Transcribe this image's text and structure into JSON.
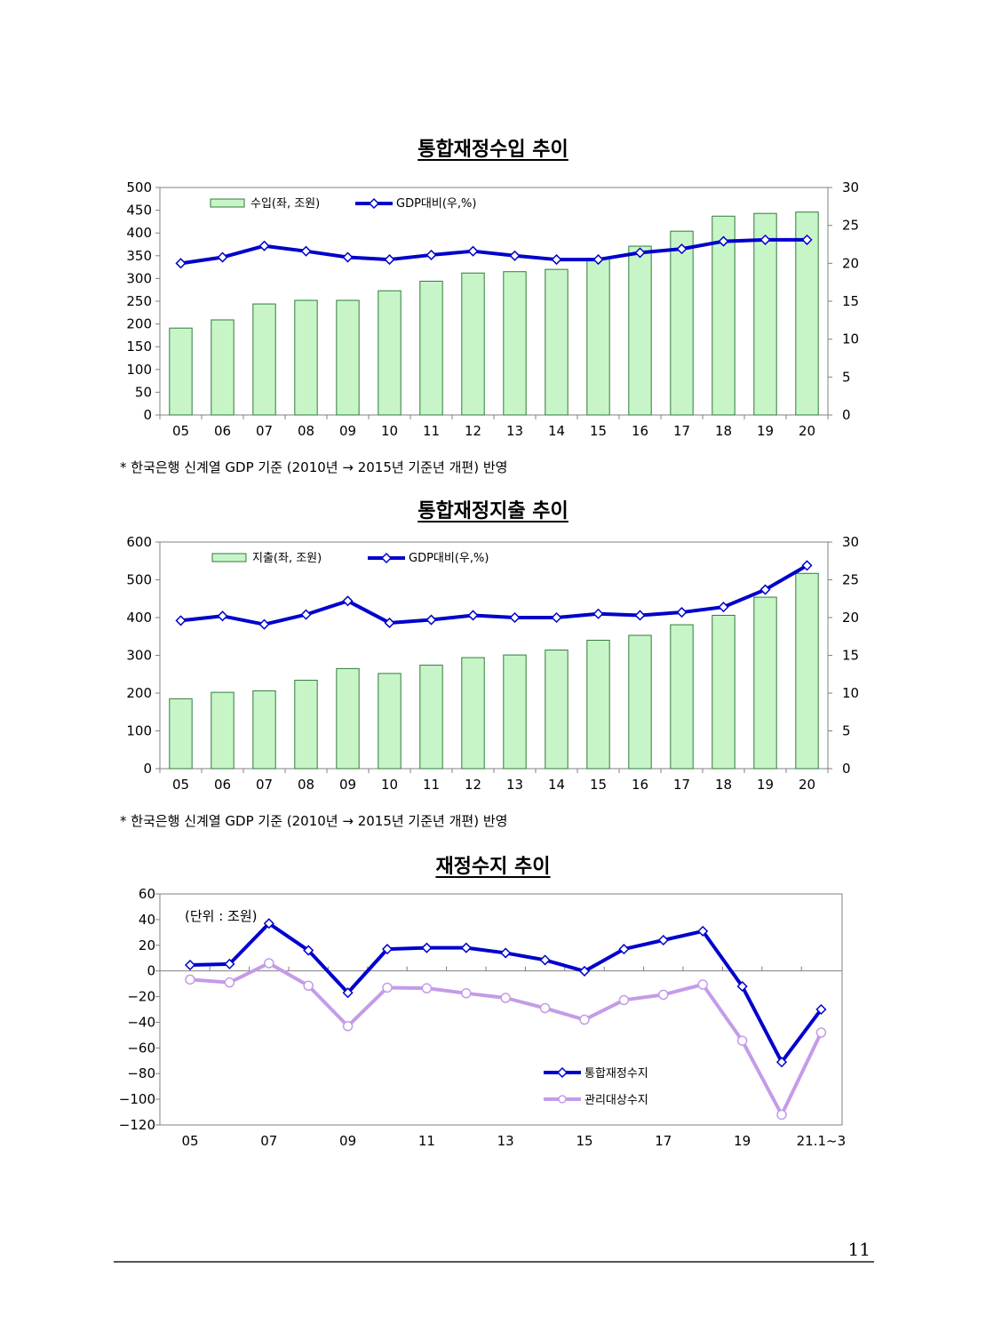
{
  "chart_data": [
    {
      "type": "bar",
      "title": "통합재정수입 추이",
      "categories": [
        "05",
        "06",
        "07",
        "08",
        "09",
        "10",
        "11",
        "12",
        "13",
        "14",
        "15",
        "16",
        "17",
        "18",
        "19",
        "20"
      ],
      "ylim": [
        0,
        500
      ],
      "yticks": [
        "0",
        "50",
        "100",
        "150",
        "200",
        "250",
        "300",
        "350",
        "400",
        "450",
        "500"
      ],
      "y2lim": [
        0,
        30
      ],
      "y2ticks": [
        "0",
        "5",
        "10",
        "15",
        "20",
        "25",
        "30"
      ],
      "legend_position": "top-left",
      "series": [
        {
          "name": "수입(좌, 조원)",
          "type": "bar",
          "axis": "left",
          "values": [
            191,
            209,
            244,
            252,
            252,
            273,
            294,
            312,
            315,
            320,
            344,
            371,
            404,
            437,
            443,
            446
          ]
        },
        {
          "name": "GDP대비(우,%)",
          "type": "line",
          "axis": "right",
          "values": [
            20.0,
            20.8,
            22.3,
            21.6,
            20.8,
            20.5,
            21.1,
            21.6,
            21.0,
            20.5,
            20.5,
            21.4,
            21.9,
            22.9,
            23.1,
            23.1
          ]
        }
      ],
      "note": "* 한국은행 신계열 GDP 기준 (2010년 → 2015년 기준년 개편) 반영"
    },
    {
      "type": "bar",
      "title": "통합재정지출 추이",
      "categories": [
        "05",
        "06",
        "07",
        "08",
        "09",
        "10",
        "11",
        "12",
        "13",
        "14",
        "15",
        "16",
        "17",
        "18",
        "19",
        "20"
      ],
      "ylim": [
        0,
        600
      ],
      "yticks": [
        "0",
        "100",
        "200",
        "300",
        "400",
        "500",
        "600"
      ],
      "y2lim": [
        0,
        30
      ],
      "y2ticks": [
        "0",
        "5",
        "10",
        "15",
        "20",
        "25",
        "30"
      ],
      "legend_position": "top-left",
      "series": [
        {
          "name": "지출(좌, 조원)",
          "type": "bar",
          "axis": "left",
          "values": [
            185,
            202,
            206,
            234,
            265,
            252,
            274,
            294,
            301,
            314,
            340,
            353,
            381,
            406,
            454,
            517
          ]
        },
        {
          "name": "GDP대비(우,%)",
          "type": "line",
          "axis": "right",
          "values": [
            19.6,
            20.2,
            19.1,
            20.4,
            22.2,
            19.3,
            19.7,
            20.3,
            20.0,
            20.0,
            20.5,
            20.3,
            20.7,
            21.4,
            23.7,
            26.9
          ]
        }
      ],
      "note": "* 한국은행 신계열 GDP 기준 (2010년 → 2015년 기준년 개편) 반영"
    },
    {
      "type": "line",
      "title": "재정수지 추이",
      "unit_label": "(단위 : 조원)",
      "x": [
        "05",
        "06",
        "07",
        "08",
        "09",
        "10",
        "11",
        "12",
        "13",
        "14",
        "15",
        "16",
        "17",
        "18",
        "19",
        "20",
        "21.1~3"
      ],
      "xtick_labels": [
        "05",
        "07",
        "09",
        "11",
        "13",
        "15",
        "17",
        "19",
        "21.1~3"
      ],
      "ylim": [
        -120,
        60
      ],
      "yticks": [
        "-120",
        "-100",
        "-80",
        "-60",
        "-40",
        "-20",
        "0",
        "20",
        "40",
        "60"
      ],
      "legend_position": "bottom-right",
      "series": [
        {
          "name": "통합재정수지",
          "values": [
            4.6,
            5.4,
            37.0,
            16.0,
            -17.0,
            17.0,
            18.0,
            18.0,
            14.0,
            8.5,
            -0.2,
            17.0,
            24.0,
            31.0,
            -12.0,
            -71.0,
            -30.0
          ]
        },
        {
          "name": "관리대상수지",
          "values": [
            -6.7,
            -9.0,
            6.0,
            -11.5,
            -43.0,
            -13.0,
            -13.5,
            -17.4,
            -21.0,
            -29.0,
            -38.0,
            -22.7,
            -18.5,
            -10.6,
            -54.4,
            -112.0,
            -48.0
          ]
        }
      ]
    }
  ],
  "colors": {
    "bar_fill": "#c8f5c8",
    "bar_stroke": "#2e7d3a",
    "line_blue": "#0000cc",
    "line_violet": "#c59be8",
    "axis": "#808080"
  },
  "page": {
    "number": "11"
  }
}
